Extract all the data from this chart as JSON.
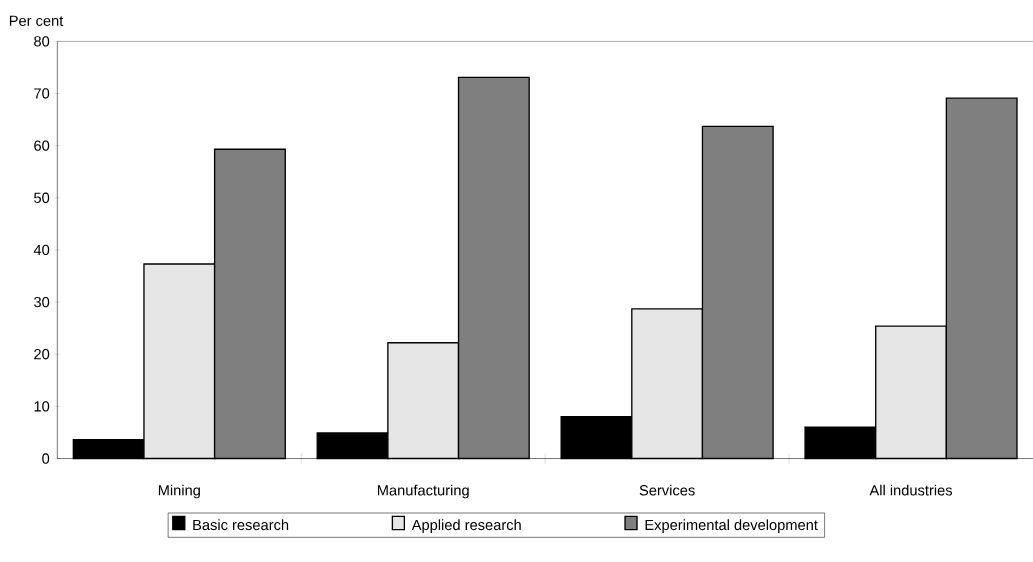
{
  "chart_data": {
    "type": "bar",
    "ylabel": "Per cent",
    "categories": [
      "Mining",
      "Manufacturing",
      "Services",
      "All industries"
    ],
    "series": [
      {
        "name": "Basic research",
        "color": "#000000",
        "values": [
          3.6,
          4.9,
          8.0,
          6.0
        ]
      },
      {
        "name": "Applied research",
        "color": "#e6e6e6",
        "values": [
          37.3,
          22.2,
          28.7,
          25.4
        ]
      },
      {
        "name": "Experimental development",
        "color": "#7f7f7f",
        "values": [
          59.3,
          73.1,
          63.7,
          69.1
        ]
      }
    ],
    "ylim": [
      0,
      80
    ],
    "yticks": [
      0,
      10,
      20,
      30,
      40,
      50,
      60,
      70,
      80
    ],
    "grid": false,
    "legend": "bottom"
  }
}
